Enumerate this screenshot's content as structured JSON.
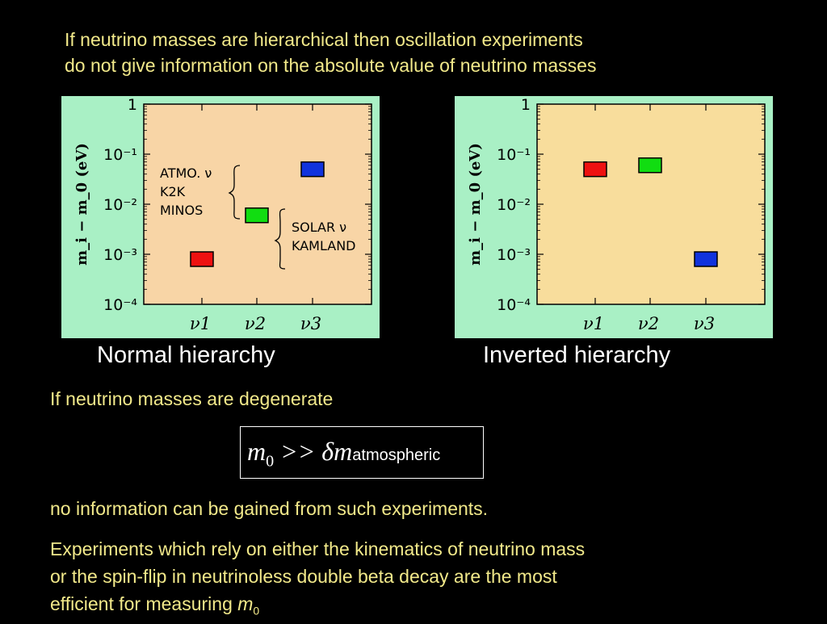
{
  "intro": {
    "line1": "If neutrino masses are hierarchical then oscillation experiments",
    "line2": "do not give information on the absolute value of neutrino masses"
  },
  "colors": {
    "panel_bg": "#a9f0c5",
    "normal_plot_bg": "#f8d5a6",
    "inverted_plot_bg": "#f8dd9c",
    "nu1": "#ee1111",
    "nu2": "#11dd11",
    "nu3": "#1133dd",
    "text_yellow": "#f2e98a"
  },
  "chart_data": [
    {
      "type": "scatter",
      "ylabel": "m_i − m_0 (eV)",
      "yscale": "log",
      "ylim": [
        0.0001,
        1
      ],
      "yticks": [
        1,
        0.1,
        0.01,
        0.001,
        0.0001
      ],
      "ytick_labels": [
        "1",
        "10⁻¹",
        "10⁻²",
        "10⁻³",
        "10⁻⁴"
      ],
      "categories": [
        "ν1",
        "ν2",
        "ν3"
      ],
      "values": [
        0.0008,
        0.006,
        0.05
      ],
      "annotations": [
        {
          "lines": [
            "ATMO. ν",
            "K2K",
            "MINOS"
          ]
        },
        {
          "lines": [
            "SOLAR ν",
            "KAMLAND"
          ]
        }
      ],
      "caption": "Normal hierarchy"
    },
    {
      "type": "scatter",
      "ylabel": "m_i − m_0 (eV)",
      "yscale": "log",
      "ylim": [
        0.0001,
        1
      ],
      "yticks": [
        1,
        0.1,
        0.01,
        0.001,
        0.0001
      ],
      "ytick_labels": [
        "1",
        "10⁻¹",
        "10⁻²",
        "10⁻³",
        "10⁻⁴"
      ],
      "categories": [
        "ν1",
        "ν2",
        "ν3"
      ],
      "values": [
        0.05,
        0.06,
        0.0008
      ],
      "caption": "Inverted hierarchy"
    }
  ],
  "degenerate": "If neutrino masses are degenerate",
  "formula": {
    "m0": "m",
    "m0_sub": "0",
    "relation": " >> δm",
    "sub": "atmospheric"
  },
  "no_info": "no information can be gained from such experiments.",
  "experiments": {
    "line1": "Experiments which rely on either the kinematics of neutrino mass",
    "line2": "or the spin-flip in neutrinoless double beta decay are the most",
    "line3": "efficient for measuring ",
    "m0": "m",
    "m0_sub": "0"
  }
}
